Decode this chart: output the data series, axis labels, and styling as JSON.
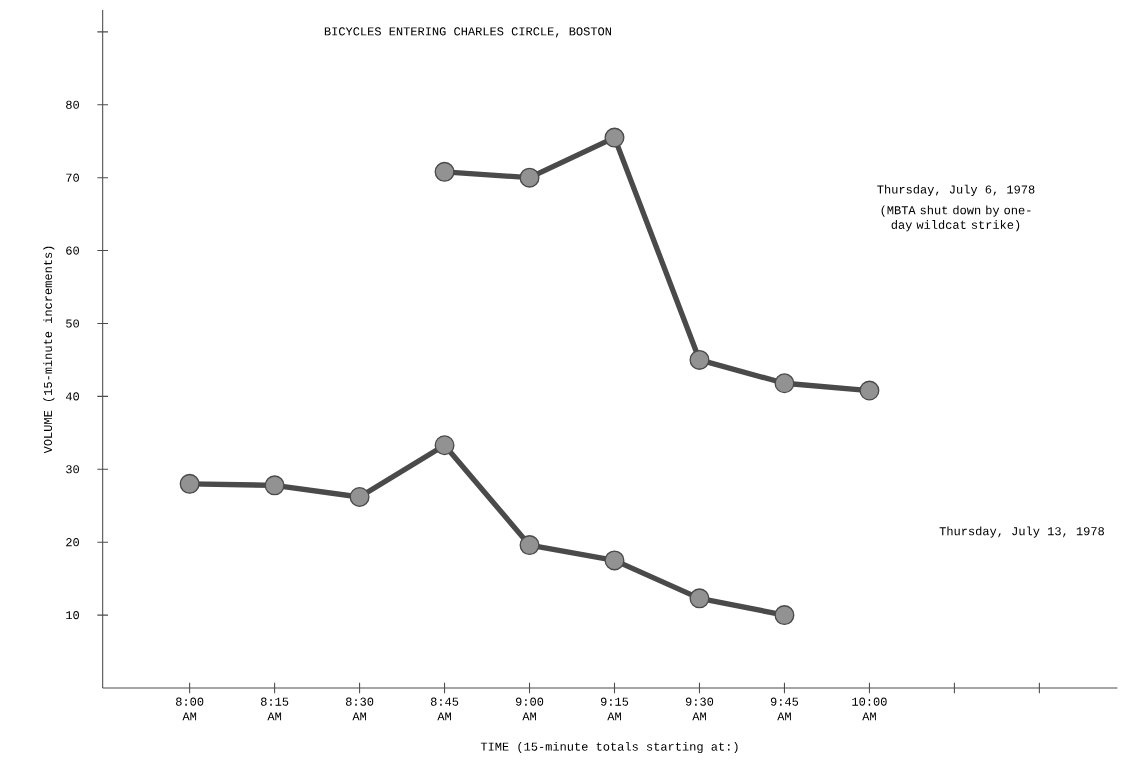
{
  "chart_data": {
    "type": "line",
    "title": "BICYCLES ENTERING CHARLES CIRCLE, BOSTON",
    "xlabel": "TIME  (15-minute totals starting at:)",
    "ylabel": "VOLUME (15-minute increments)",
    "categories": [
      "8:00 AM",
      "8:15 AM",
      "8:30 AM",
      "8:45 AM",
      "9:00 AM",
      "9:15 AM",
      "9:30 AM",
      "9:45 AM",
      "10:00 AM",
      null,
      null
    ],
    "series": [
      {
        "name": "Thursday, July 6, 1978",
        "color": "#4a4a4a",
        "values": [
          null,
          null,
          null,
          70.8,
          70,
          75.5,
          45,
          41.8,
          40.8,
          null,
          null
        ]
      },
      {
        "name": "Thursday, July 13, 1978",
        "color": "#4a4a4a",
        "values": [
          28,
          27.8,
          26.2,
          33.3,
          19.6,
          17.5,
          12.3,
          10,
          null,
          null,
          null
        ]
      }
    ],
    "annotations": [
      "(MBTA shut down by one-day wildcat strike)"
    ],
    "ylim": [
      0,
      93
    ],
    "yticks": [
      10,
      20,
      30,
      40,
      50,
      60,
      70,
      80,
      {
        "value": 90,
        "label": null
      }
    ],
    "legend": false,
    "marker": "circle",
    "line_style": "solid"
  }
}
